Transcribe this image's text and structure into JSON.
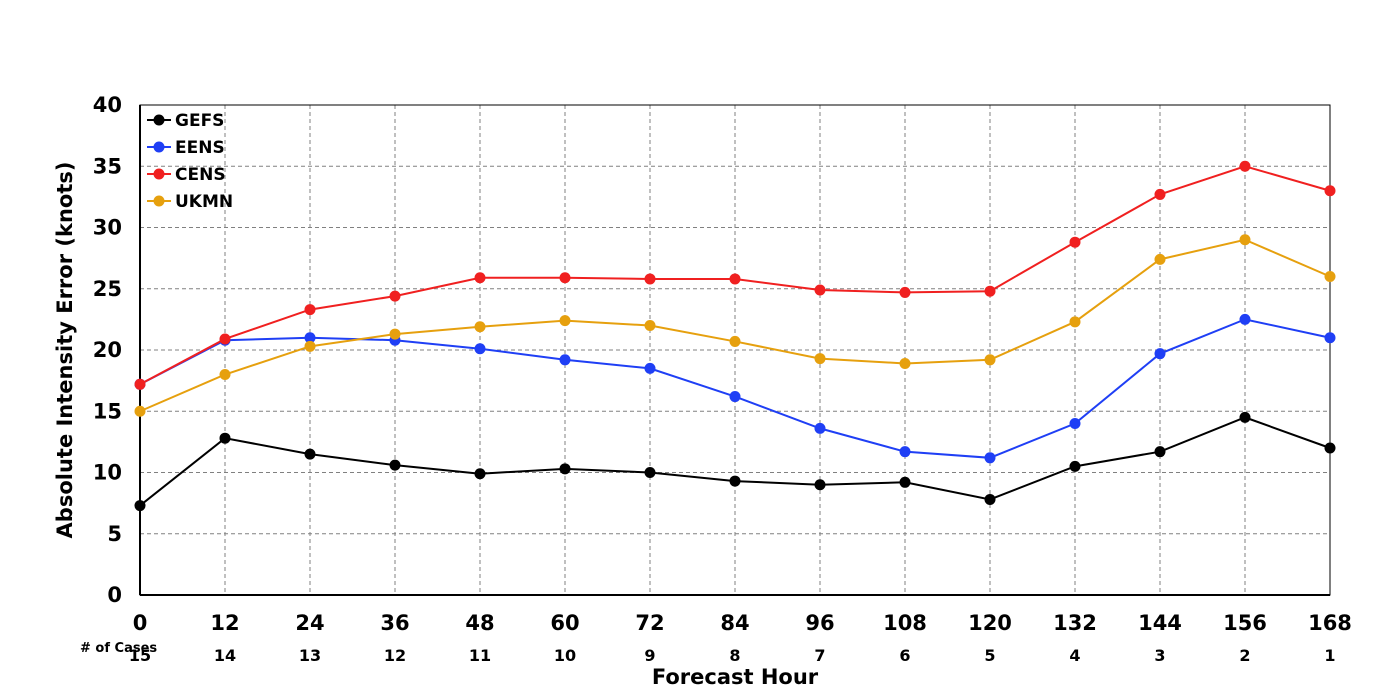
{
  "chart_data": {
    "type": "line",
    "xlabel": "Forecast Hour",
    "ylabel": "Absolute Intensity Error (knots)",
    "x": [
      0,
      12,
      24,
      36,
      48,
      60,
      72,
      84,
      96,
      108,
      120,
      132,
      144,
      156,
      168
    ],
    "xlim": [
      0,
      168
    ],
    "ylim": [
      0,
      40
    ],
    "y_ticks": [
      0,
      5,
      10,
      15,
      20,
      25,
      30,
      35,
      40
    ],
    "grid": true,
    "legend_position": "top-left",
    "cases_label": "# of Cases",
    "cases": [
      15,
      14,
      13,
      12,
      11,
      10,
      9,
      8,
      7,
      6,
      5,
      4,
      3,
      2,
      1
    ],
    "series": [
      {
        "name": "GEFS",
        "color": "#000000",
        "values": [
          7.3,
          12.8,
          11.5,
          10.6,
          9.9,
          10.3,
          10.0,
          9.3,
          9.0,
          9.2,
          7.8,
          10.5,
          11.7,
          14.5,
          12.0
        ]
      },
      {
        "name": "EENS",
        "color": "#1f3ff5",
        "values": [
          17.2,
          20.8,
          21.0,
          20.8,
          20.1,
          19.2,
          18.5,
          16.2,
          13.6,
          11.7,
          11.2,
          14.0,
          19.7,
          22.5,
          21.0
        ]
      },
      {
        "name": "CENS",
        "color": "#f02020",
        "values": [
          17.2,
          20.9,
          23.3,
          24.4,
          25.9,
          25.9,
          25.8,
          25.8,
          24.9,
          24.7,
          24.8,
          28.8,
          32.7,
          35.0,
          33.0
        ]
      },
      {
        "name": "UKMN",
        "color": "#e6a00e",
        "values": [
          15.0,
          18.0,
          20.3,
          21.3,
          21.9,
          22.4,
          22.0,
          20.7,
          19.3,
          18.9,
          19.2,
          22.3,
          27.4,
          29.0,
          26.0
        ]
      }
    ]
  }
}
